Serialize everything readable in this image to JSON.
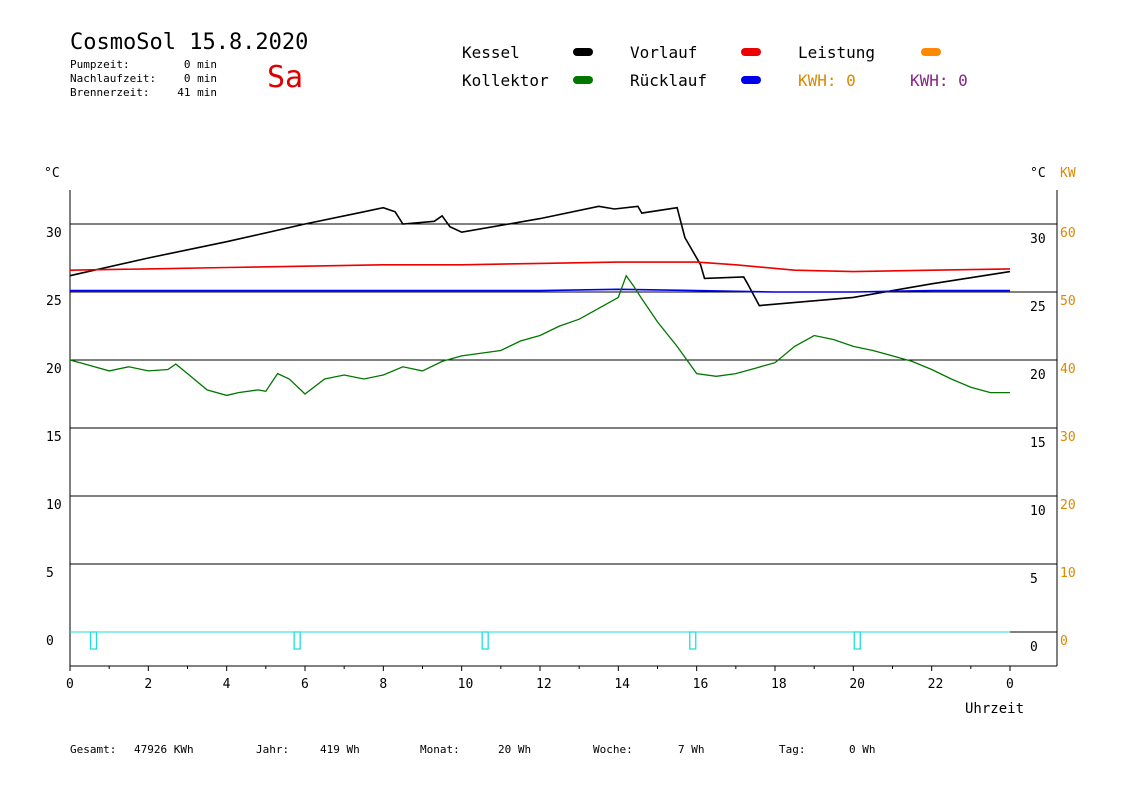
{
  "header": {
    "title": "CosmoSol 15.8.2020",
    "day": "Sa",
    "stats": [
      {
        "label": "Pumpzeit:",
        "value": "0 min"
      },
      {
        "label": "Nachlaufzeit:",
        "value": "0 min"
      },
      {
        "label": "Brennerzeit:",
        "value": "41 min"
      }
    ]
  },
  "legend": {
    "items": [
      {
        "label": "Kessel",
        "color": "#000000"
      },
      {
        "label": "Vorlauf",
        "color": "#ee0000"
      },
      {
        "label": "Leistung",
        "color": "#ff8800"
      },
      {
        "label": "Kollektor",
        "color": "#007700"
      },
      {
        "label": "Rücklauf",
        "color": "#0000ee"
      }
    ],
    "kwh": [
      {
        "label": "KWH: 0",
        "color": "#dd8800"
      },
      {
        "label": "KWH: 0",
        "color": "#882288"
      }
    ]
  },
  "footer": [
    {
      "label": "Gesamt:",
      "value": "47926 KWh"
    },
    {
      "label": "Jahr:",
      "value": "419 Wh"
    },
    {
      "label": "Monat:",
      "value": "20 Wh"
    },
    {
      "label": "Woche:",
      "value": "7 Wh"
    },
    {
      "label": "Tag:",
      "value": "0 Wh"
    }
  ],
  "chart_data": {
    "type": "line",
    "xlabel": "Uhrzeit",
    "ylabel_left": "°C",
    "ylabel_right": "°C",
    "ylabel_right2": "KW",
    "xlim": [
      0,
      24
    ],
    "ylim": [
      -2.5,
      32.5
    ],
    "ylim_kw": [
      -5,
      65
    ],
    "x_ticks": [
      "0",
      "2",
      "4",
      "6",
      "8",
      "10",
      "12",
      "14",
      "16",
      "18",
      "20",
      "22",
      "0"
    ],
    "y_ticks": [
      0,
      5,
      10,
      15,
      20,
      25,
      30
    ],
    "y_ticks_kw": [
      0,
      10,
      20,
      30,
      40,
      50,
      60
    ],
    "grid": "horizontal",
    "series": [
      {
        "name": "Kessel",
        "color": "#000000",
        "points": [
          [
            0,
            26.2
          ],
          [
            2,
            27.5
          ],
          [
            4,
            28.7
          ],
          [
            6,
            30.0
          ],
          [
            7.5,
            30.9
          ],
          [
            8.0,
            31.2
          ],
          [
            8.3,
            30.9
          ],
          [
            8.5,
            30.0
          ],
          [
            9.3,
            30.2
          ],
          [
            9.5,
            30.6
          ],
          [
            9.7,
            29.8
          ],
          [
            10,
            29.4
          ],
          [
            12,
            30.4
          ],
          [
            13.5,
            31.3
          ],
          [
            13.9,
            31.1
          ],
          [
            14.5,
            31.3
          ],
          [
            14.6,
            30.8
          ],
          [
            15.5,
            31.2
          ],
          [
            15.7,
            29.0
          ],
          [
            16.1,
            27.0
          ],
          [
            16.2,
            26.0
          ],
          [
            17.2,
            26.1
          ],
          [
            17.3,
            25.6
          ],
          [
            17.6,
            24.0
          ],
          [
            18,
            24.1
          ],
          [
            20,
            24.6
          ],
          [
            22,
            25.6
          ],
          [
            24,
            26.5
          ]
        ]
      },
      {
        "name": "Vorlauf",
        "color": "#ee0000",
        "points": [
          [
            0,
            26.6
          ],
          [
            2,
            26.7
          ],
          [
            4,
            26.8
          ],
          [
            6,
            26.9
          ],
          [
            8,
            27.0
          ],
          [
            10,
            27.0
          ],
          [
            12,
            27.1
          ],
          [
            14,
            27.2
          ],
          [
            16,
            27.2
          ],
          [
            17,
            27.0
          ],
          [
            18.5,
            26.6
          ],
          [
            20,
            26.5
          ],
          [
            22,
            26.6
          ],
          [
            24,
            26.7
          ]
        ]
      },
      {
        "name": "Rücklauf",
        "color": "#0000ee",
        "points": [
          [
            0,
            25.1
          ],
          [
            4,
            25.1
          ],
          [
            8,
            25.1
          ],
          [
            12,
            25.1
          ],
          [
            14,
            25.2
          ],
          [
            16,
            25.1
          ],
          [
            18,
            25.0
          ],
          [
            20,
            25.0
          ],
          [
            22,
            25.1
          ],
          [
            24,
            25.1
          ]
        ]
      },
      {
        "name": "Kollektor",
        "color": "#007700",
        "points": [
          [
            0,
            20.0
          ],
          [
            0.5,
            19.6
          ],
          [
            1,
            19.2
          ],
          [
            1.5,
            19.5
          ],
          [
            2,
            19.2
          ],
          [
            2.5,
            19.3
          ],
          [
            2.7,
            19.7
          ],
          [
            3,
            19.0
          ],
          [
            3.5,
            17.8
          ],
          [
            4,
            17.4
          ],
          [
            4.3,
            17.6
          ],
          [
            4.8,
            17.8
          ],
          [
            5,
            17.7
          ],
          [
            5.3,
            19.0
          ],
          [
            5.6,
            18.6
          ],
          [
            6,
            17.5
          ],
          [
            6.5,
            18.6
          ],
          [
            7,
            18.9
          ],
          [
            7.5,
            18.6
          ],
          [
            8,
            18.9
          ],
          [
            8.5,
            19.5
          ],
          [
            9,
            19.2
          ],
          [
            9.5,
            19.9
          ],
          [
            10,
            20.3
          ],
          [
            11,
            20.7
          ],
          [
            11.5,
            21.4
          ],
          [
            12,
            21.8
          ],
          [
            12.5,
            22.5
          ],
          [
            13,
            23.0
          ],
          [
            13.5,
            23.8
          ],
          [
            14,
            24.6
          ],
          [
            14.2,
            26.2
          ],
          [
            14.4,
            25.4
          ],
          [
            14.6,
            24.5
          ],
          [
            15,
            22.8
          ],
          [
            15.5,
            21.0
          ],
          [
            16,
            19.0
          ],
          [
            16.5,
            18.8
          ],
          [
            17,
            19.0
          ],
          [
            17.5,
            19.4
          ],
          [
            18,
            19.8
          ],
          [
            18.5,
            21.0
          ],
          [
            19,
            21.8
          ],
          [
            19.5,
            21.5
          ],
          [
            20,
            21.0
          ],
          [
            20.5,
            20.7
          ],
          [
            21,
            20.3
          ],
          [
            21.5,
            19.9
          ],
          [
            22,
            19.3
          ],
          [
            22.5,
            18.6
          ],
          [
            23,
            18.0
          ],
          [
            23.5,
            17.6
          ],
          [
            24,
            17.6
          ]
        ]
      }
    ],
    "pump_markers": [
      0.6,
      5.8,
      10.6,
      15.9,
      20.1
    ]
  }
}
